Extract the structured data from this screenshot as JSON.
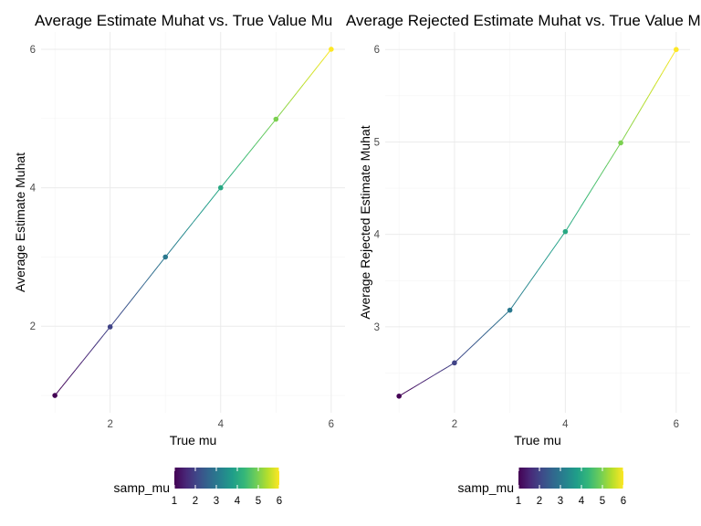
{
  "chart_data": [
    {
      "type": "line",
      "title": "Average Estimate Muhat vs. True Value Mu",
      "xlabel": "True mu",
      "ylabel": "Average Estimate Muhat",
      "x": [
        1,
        2,
        3,
        4,
        5,
        6
      ],
      "y": [
        1.0,
        1.99,
        3.0,
        4.0,
        4.99,
        6.0
      ],
      "color_values": [
        1,
        2,
        3,
        4,
        5,
        6
      ],
      "xlim": [
        0.75,
        6.25
      ],
      "ylim": [
        0.75,
        6.25
      ],
      "x_ticks": [
        2,
        4,
        6
      ],
      "y_ticks": [
        2,
        4,
        6
      ],
      "grid": true,
      "legend": {
        "title": "samp_mu",
        "position": "bottom",
        "ticks": [
          1,
          2,
          3,
          4,
          5,
          6
        ],
        "colormap": "viridis"
      }
    },
    {
      "type": "line",
      "title": "Average Rejected Estimate Muhat vs. True Value Mu",
      "xlabel": "True mu",
      "ylabel": "Average Rejected Estimate Muhat",
      "x": [
        1,
        2,
        3,
        4,
        5,
        6
      ],
      "y": [
        2.25,
        2.61,
        3.18,
        4.03,
        4.99,
        6.0
      ],
      "color_values": [
        1,
        2,
        3,
        4,
        5,
        6
      ],
      "xlim": [
        0.75,
        6.25
      ],
      "ylim": [
        2.07,
        6.19
      ],
      "x_ticks": [
        2,
        4,
        6
      ],
      "y_ticks": [
        3,
        4,
        5,
        6
      ],
      "grid": true,
      "legend": {
        "title": "samp_mu",
        "position": "bottom",
        "ticks": [
          1,
          2,
          3,
          4,
          5,
          6
        ],
        "colormap": "viridis"
      }
    }
  ],
  "colors": {
    "viridis": [
      "#440154",
      "#482878",
      "#3e4a89",
      "#31688e",
      "#26828e",
      "#1f9e89",
      "#35b779",
      "#6dcd59",
      "#b4de2c",
      "#fde725"
    ],
    "grid": "#ebebeb",
    "text": "#000000",
    "tick_text": "#4d4d4d"
  }
}
